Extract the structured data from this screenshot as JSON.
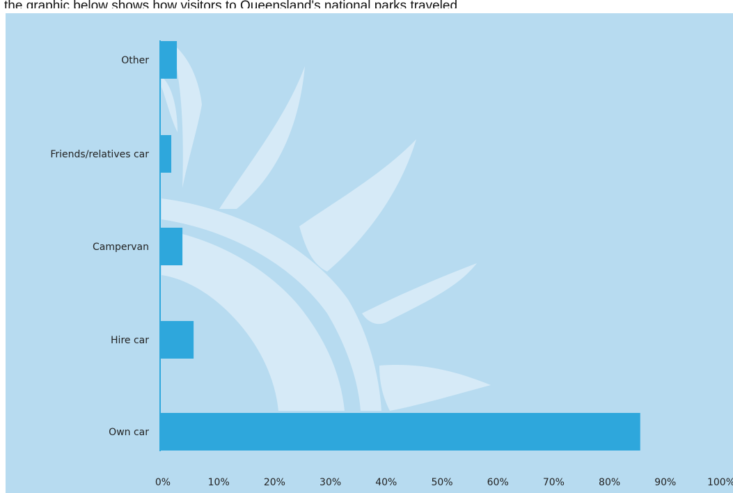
{
  "header": {
    "text": "the graphic below shows how visitors to Queensland's national parks traveled"
  },
  "colors": {
    "panel_bg": "#b7dbf0",
    "bar": "#2ea7dc",
    "axis": "#2ea7dc",
    "watermark": "#d6eaf7"
  },
  "chart_data": {
    "type": "bar",
    "orientation": "horizontal",
    "title": "",
    "xlabel": "",
    "ylabel": "",
    "categories": [
      "Other",
      "Friends/relatives car",
      "Campervan",
      "Hire car",
      "Own car"
    ],
    "values": [
      3,
      2,
      4,
      6,
      86
    ],
    "unit": "%",
    "xlim": [
      0,
      100
    ],
    "x_ticks": [
      "0%",
      "10%",
      "20%",
      "30%",
      "40%",
      "50%",
      "60%",
      "70%",
      "80%",
      "90%",
      "100%"
    ],
    "grid": false,
    "legend": "none",
    "background_watermark": "stylized-plant-icon"
  }
}
